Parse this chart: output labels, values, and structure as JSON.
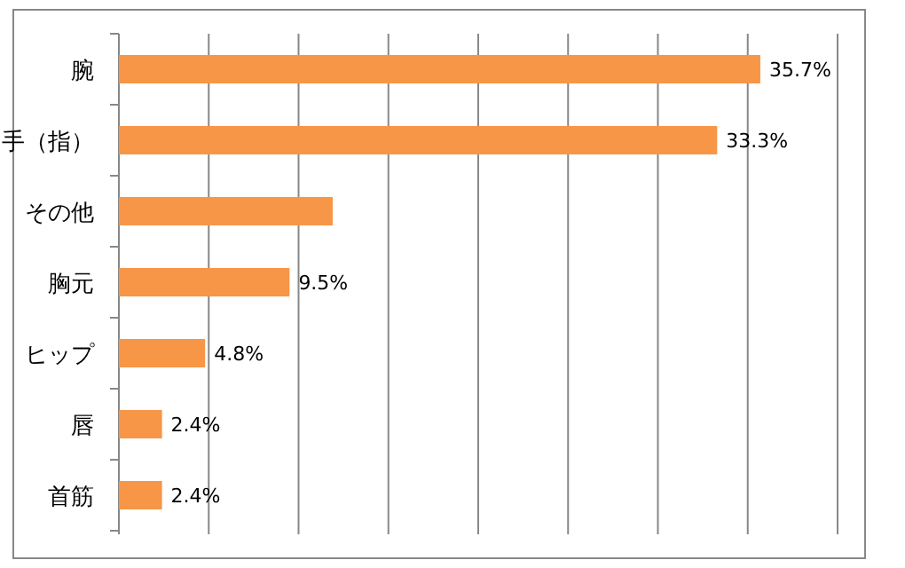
{
  "chart_data": {
    "type": "bar",
    "orientation": "horizontal",
    "categories": [
      "腕",
      "手（指）",
      "その他",
      "胸元",
      "ヒップ",
      "唇",
      "首筋"
    ],
    "values": [
      35.7,
      33.3,
      11.9,
      9.5,
      4.8,
      2.4,
      2.4
    ],
    "value_labels": [
      "35.7%",
      "33.3%",
      null,
      "9.5%",
      "4.8%",
      "2.4%",
      "2.4%"
    ],
    "color": "#f79646",
    "xlim": [
      0,
      40
    ],
    "xticks": [
      {
        "value": 0,
        "label": null
      },
      {
        "value": 5,
        "label": null
      },
      {
        "value": 10,
        "label": null
      },
      {
        "value": 15,
        "label": null
      },
      {
        "value": 20,
        "label": null
      },
      {
        "value": 25,
        "label": null
      },
      {
        "value": 30,
        "label": null
      },
      {
        "value": 35,
        "label": null
      },
      {
        "value": 40,
        "label": null
      }
    ],
    "grid": "x",
    "tick_labels": "y"
  }
}
